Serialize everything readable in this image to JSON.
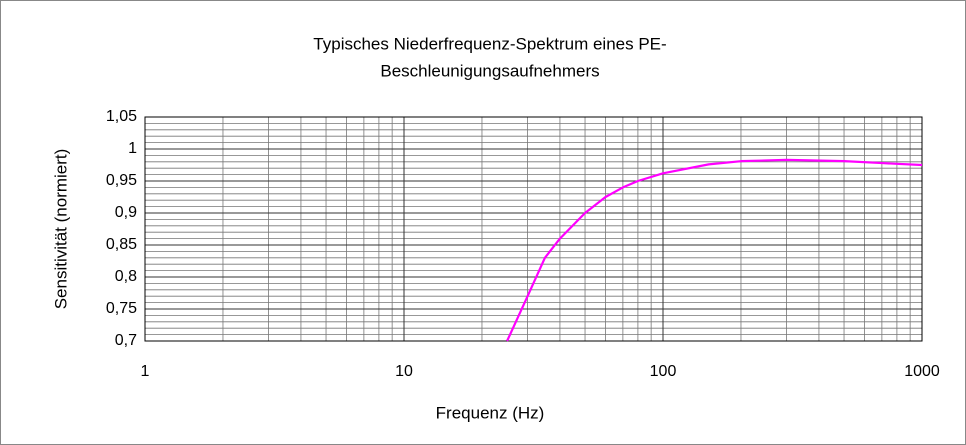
{
  "chart_data": {
    "type": "line",
    "title": [
      "Typisches Niederfrequenz-Spektrum eines PE-",
      "Beschleunigungsaufnehmers"
    ],
    "x_label": "Frequenz (Hz)",
    "y_label": "Sensitivität (normiert)",
    "x": [
      25,
      30,
      35,
      40,
      50,
      60,
      70,
      80,
      100,
      150,
      200,
      300,
      500,
      700,
      1000
    ],
    "series": [
      {
        "name": "Sensitivität",
        "color": "#ff00ff",
        "values": [
          0.7,
          0.77,
          0.83,
          0.86,
          0.9,
          0.925,
          0.94,
          0.95,
          0.962,
          0.976,
          0.981,
          0.983,
          0.981,
          0.978,
          0.975
        ]
      }
    ],
    "xlim": [
      1,
      1000
    ],
    "xticks": [
      1,
      10,
      100,
      1000
    ],
    "xscale": "log",
    "ylim": [
      0.7,
      1.05
    ],
    "yticks": [
      {
        "value": 0.7,
        "label": "0,7"
      },
      {
        "value": 0.75,
        "label": "0,75"
      },
      {
        "value": 0.8,
        "label": "0,8"
      },
      {
        "value": 0.85,
        "label": "0,85"
      },
      {
        "value": 0.9,
        "label": "0,9"
      },
      {
        "value": 0.95,
        "label": "0,95"
      },
      1,
      {
        "value": 1.05,
        "label": "1,05"
      }
    ],
    "grid": true,
    "minor_grid": true
  }
}
